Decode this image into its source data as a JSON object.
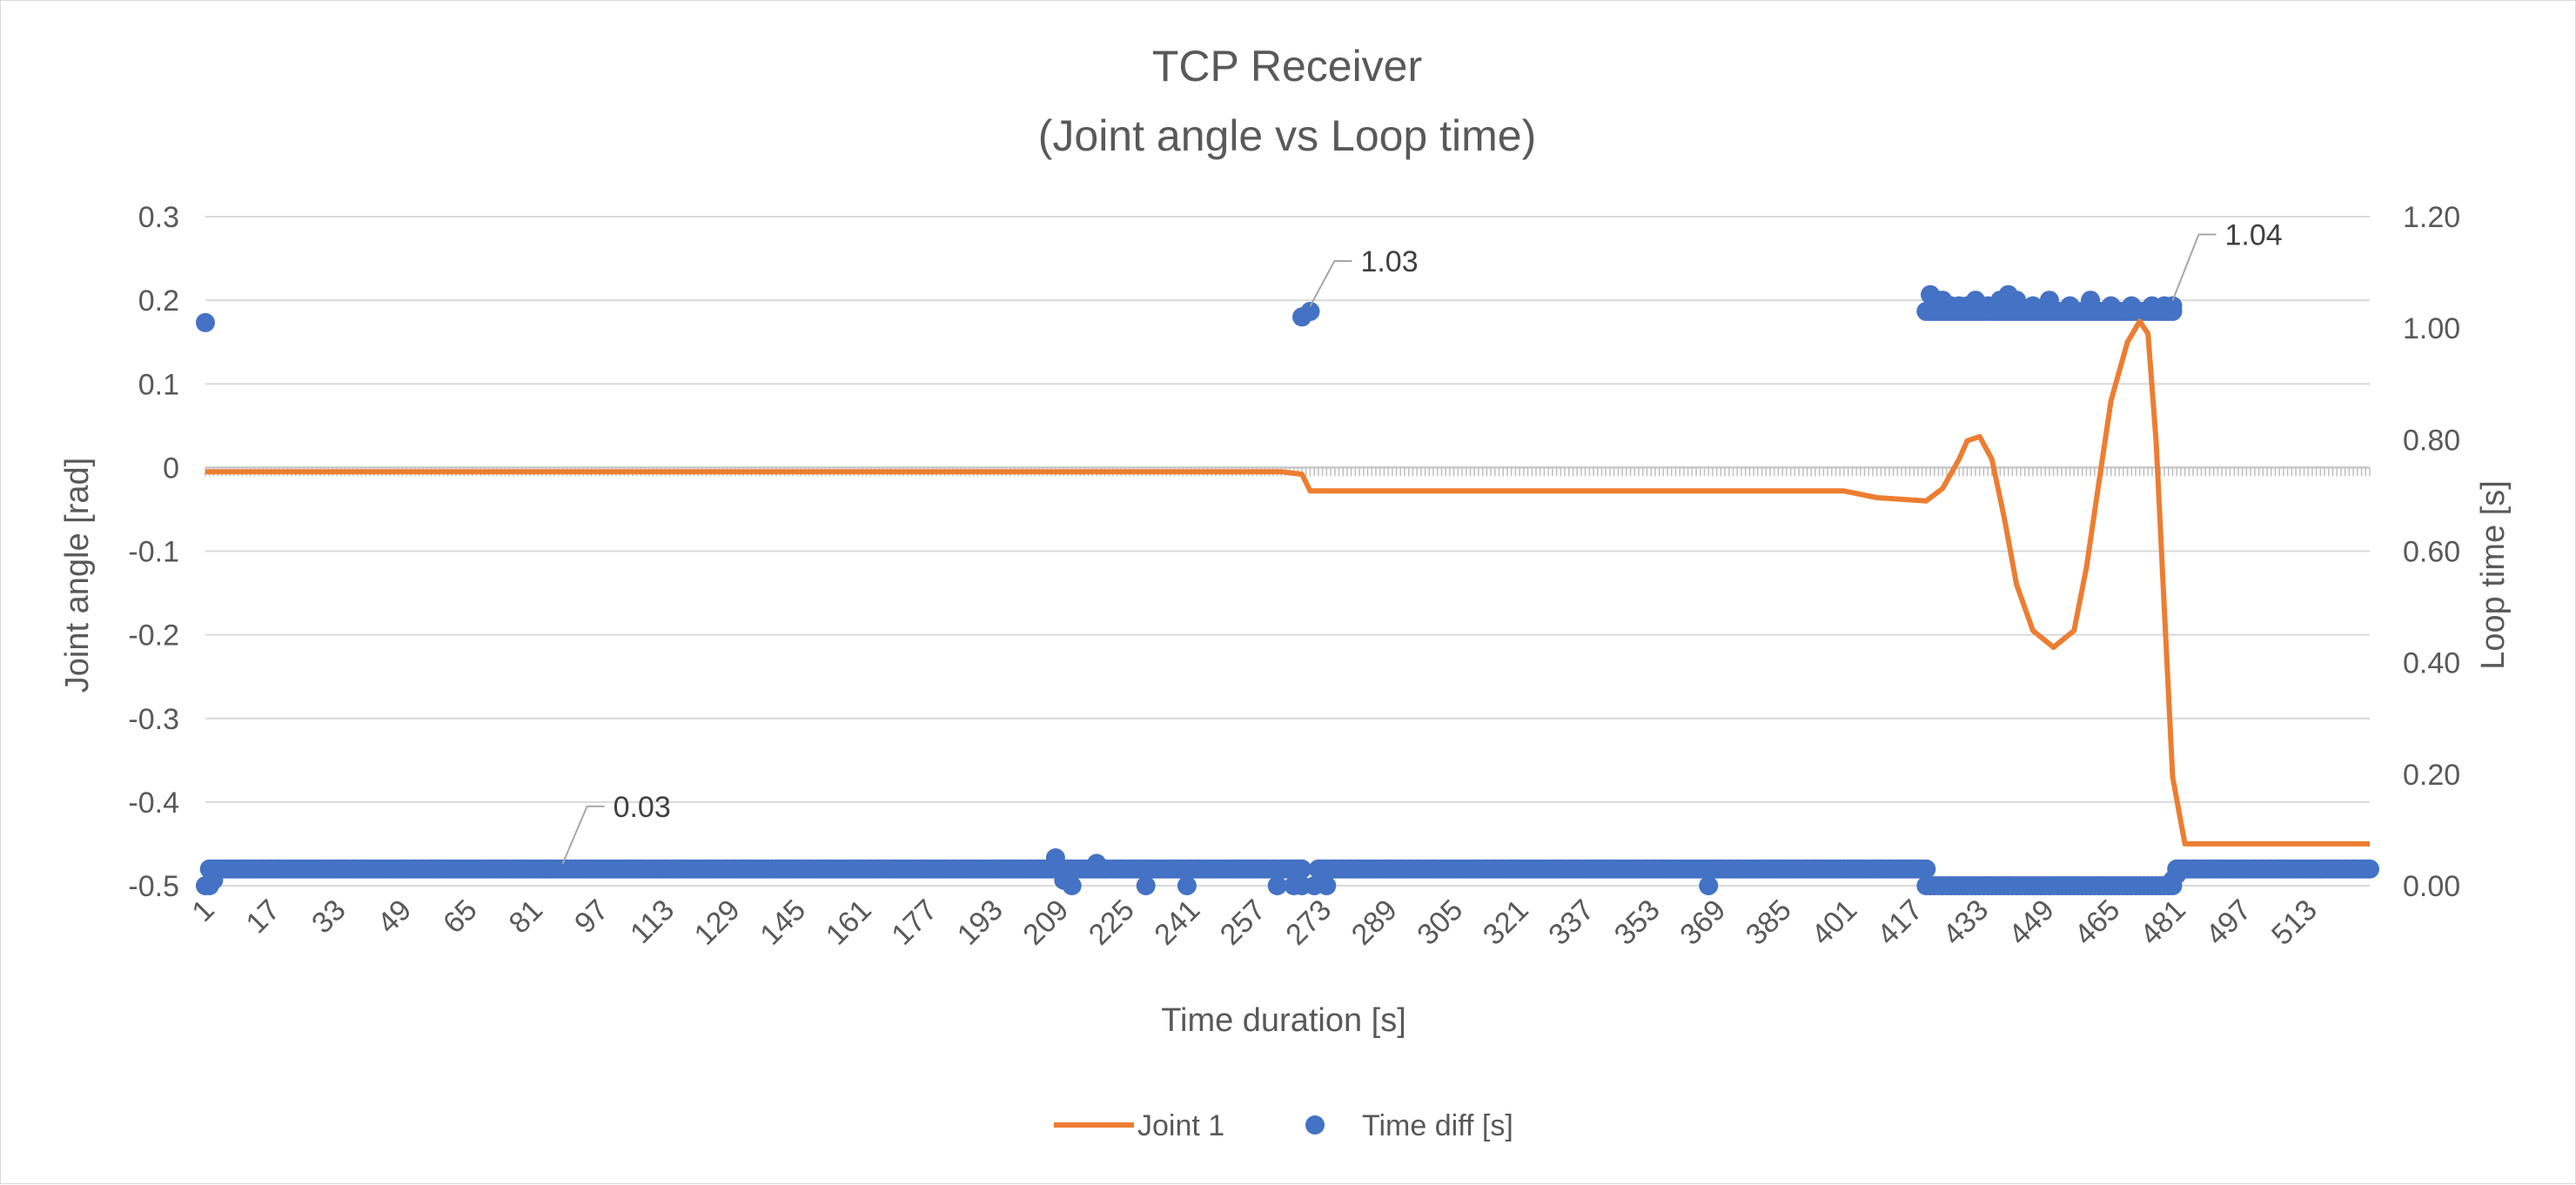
{
  "chart_data": {
    "type": "line",
    "title": "TCP Receiver",
    "subtitle": "(Joint angle vs Loop time)",
    "xlabel": "Time duration [s]",
    "ylabel": "Joint angle [rad]",
    "y2label": "Loop time [s]",
    "x_ticks": [
      "1",
      "17",
      "33",
      "49",
      "65",
      "81",
      "97",
      "113",
      "129",
      "145",
      "161",
      "177",
      "193",
      "209",
      "225",
      "241",
      "257",
      "273",
      "289",
      "305",
      "321",
      "337",
      "353",
      "369",
      "385",
      "401",
      "417",
      "433",
      "449",
      "465",
      "481",
      "497",
      "513"
    ],
    "y_ticks": [
      "0.3",
      "0.2",
      "0.1",
      "0",
      "-0.1",
      "-0.2",
      "-0.3",
      "-0.4",
      "-0.5"
    ],
    "y2_ticks": [
      "1.20",
      "1.00",
      "0.80",
      "0.60",
      "0.40",
      "0.20",
      "0.00"
    ],
    "xlim": [
      1,
      528
    ],
    "ylim": [
      -0.5,
      0.3
    ],
    "y2lim": [
      0,
      1.2
    ],
    "grid": true,
    "legend_position": "bottom",
    "colors": {
      "joint": "#ed7d31",
      "timediff": "#4472c4",
      "grid": "#d9d9d9"
    },
    "series": [
      {
        "name": "Joint 1",
        "kind": "line",
        "axis": "left",
        "points": [
          [
            1,
            -0.005
          ],
          [
            263,
            -0.005
          ],
          [
            268,
            -0.008
          ],
          [
            270,
            -0.028
          ],
          [
            400,
            -0.028
          ],
          [
            408,
            -0.036
          ],
          [
            420,
            -0.04
          ],
          [
            424,
            -0.025
          ],
          [
            428,
            0.01
          ],
          [
            430,
            0.032
          ],
          [
            433,
            0.037
          ],
          [
            436,
            0.01
          ],
          [
            439,
            -0.06
          ],
          [
            442,
            -0.14
          ],
          [
            446,
            -0.195
          ],
          [
            451,
            -0.215
          ],
          [
            456,
            -0.195
          ],
          [
            459,
            -0.12
          ],
          [
            462,
            -0.02
          ],
          [
            465,
            0.08
          ],
          [
            469,
            0.15
          ],
          [
            472,
            0.175
          ],
          [
            474,
            0.16
          ],
          [
            476,
            0.03
          ],
          [
            478,
            -0.17
          ],
          [
            480,
            -0.37
          ],
          [
            483,
            -0.45
          ],
          [
            528,
            -0.45
          ]
        ]
      },
      {
        "name": "Time diff [s]",
        "kind": "scatter",
        "axis": "right",
        "dense_runs": [
          {
            "from": 2,
            "to": 268,
            "value": 0.03
          },
          {
            "from": 272,
            "to": 420,
            "value": 0.03
          },
          {
            "from": 420,
            "to": 480,
            "value": 1.03
          },
          {
            "from": 420,
            "to": 480,
            "value": 0.0
          },
          {
            "from": 481,
            "to": 528,
            "value": 0.03
          }
        ],
        "points": [
          [
            1,
            1.01
          ],
          [
            1,
            0.0
          ],
          [
            2,
            0.0
          ],
          [
            3,
            0.01
          ],
          [
            4,
            0.03
          ],
          [
            208,
            0.05
          ],
          [
            210,
            0.01
          ],
          [
            212,
            0.0
          ],
          [
            214,
            0.03
          ],
          [
            218,
            0.04
          ],
          [
            230,
            0.0
          ],
          [
            234,
            0.03
          ],
          [
            236,
            0.03
          ],
          [
            240,
            0.0
          ],
          [
            262,
            0.0
          ],
          [
            266,
            0.0
          ],
          [
            268,
            1.02
          ],
          [
            270,
            1.03
          ],
          [
            268,
            0.0
          ],
          [
            271,
            0.0
          ],
          [
            274,
            0.0
          ],
          [
            276,
            0.03
          ],
          [
            367,
            0.0
          ],
          [
            421,
            1.06
          ],
          [
            423,
            1.05
          ],
          [
            424,
            1.05
          ],
          [
            426,
            1.04
          ],
          [
            428,
            1.04
          ],
          [
            430,
            1.04
          ],
          [
            432,
            1.05
          ],
          [
            435,
            1.04
          ],
          [
            438,
            1.05
          ],
          [
            440,
            1.06
          ],
          [
            442,
            1.05
          ],
          [
            446,
            1.04
          ],
          [
            450,
            1.05
          ],
          [
            455,
            1.04
          ],
          [
            460,
            1.05
          ],
          [
            465,
            1.04
          ],
          [
            470,
            1.04
          ],
          [
            475,
            1.04
          ],
          [
            478,
            1.04
          ],
          [
            480,
            1.04
          ],
          [
            478,
            0.0
          ],
          [
            480,
            0.01
          ],
          [
            481,
            0.02
          ],
          [
            483,
            0.03
          ]
        ]
      }
    ],
    "annotations": [
      {
        "text": "1.03",
        "x": 270,
        "value": 1.03,
        "axis": "right"
      },
      {
        "text": "1.04",
        "x": 480,
        "value": 1.04,
        "axis": "right"
      },
      {
        "text": "0.03",
        "x": 88,
        "value": 0.03,
        "axis": "right"
      }
    ]
  }
}
